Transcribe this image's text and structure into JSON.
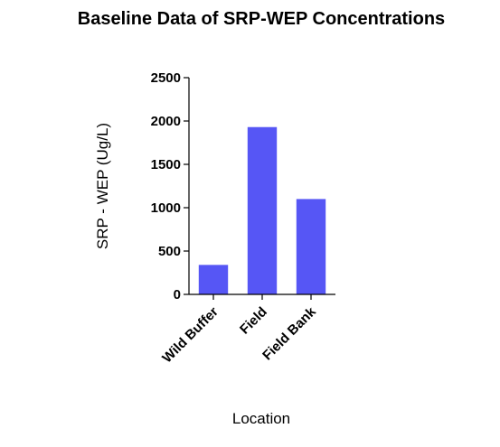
{
  "chart_data": {
    "type": "bar",
    "title": "Baseline Data of SRP-WEP Concentrations",
    "xlabel": "Location",
    "ylabel": "SRP - WEP (Ug/L)",
    "categories": [
      "Wild Buffer",
      "Field",
      "Field Bank"
    ],
    "values": [
      340,
      1930,
      1100
    ],
    "ylim": [
      0,
      2500
    ],
    "yticks": [
      0,
      500,
      1000,
      1500,
      2000,
      2500
    ],
    "grid": false,
    "legend": "none",
    "bar_color": "#5656f5"
  }
}
